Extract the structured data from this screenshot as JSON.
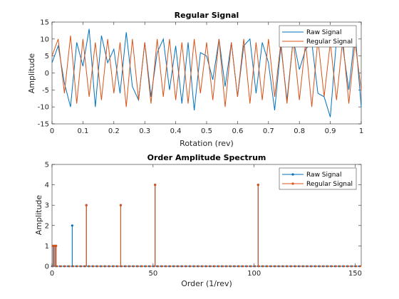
{
  "chart_data": [
    {
      "type": "line",
      "title": "Regular Signal",
      "xlabel": "Rotation (rev)",
      "ylabel": "Amplitude",
      "xlim": [
        0,
        1
      ],
      "ylim": [
        -15,
        15
      ],
      "xticks": [
        "0",
        "0.1",
        "0.2",
        "0.3",
        "0.4",
        "0.5",
        "0.6",
        "0.7",
        "0.8",
        "0.9",
        "1"
      ],
      "yticks": [
        "-15",
        "-10",
        "-5",
        "0",
        "5",
        "10",
        "15"
      ],
      "grid": false,
      "legend_position": "top-right",
      "series": [
        {
          "name": "Raw Signal",
          "color": "#0072BD",
          "x": [
            0,
            0.02,
            0.04,
            0.06,
            0.08,
            0.1,
            0.12,
            0.14,
            0.16,
            0.18,
            0.2,
            0.22,
            0.24,
            0.26,
            0.28,
            0.3,
            0.32,
            0.34,
            0.36,
            0.38,
            0.4,
            0.42,
            0.44,
            0.46,
            0.48,
            0.5,
            0.52,
            0.54,
            0.56,
            0.58,
            0.6,
            0.62,
            0.64,
            0.66,
            0.68,
            0.7,
            0.72,
            0.74,
            0.76,
            0.78,
            0.8,
            0.82,
            0.84,
            0.86,
            0.88,
            0.9,
            0.92,
            0.94,
            0.96,
            0.98,
            1
          ],
          "y": [
            3,
            8,
            -3,
            -10,
            9,
            2,
            13,
            -10,
            11,
            3,
            7,
            -6,
            12,
            -4,
            -8,
            9,
            -7,
            6,
            10,
            -5,
            8,
            -9,
            9,
            -11,
            6,
            5,
            -2,
            10,
            -4,
            9,
            -7,
            8,
            10,
            -6,
            9,
            3,
            -11,
            8,
            -8,
            10,
            1,
            7,
            9,
            -6,
            -7,
            -13,
            10,
            8,
            -5,
            12,
            -10
          ]
        },
        {
          "name": "Regular Signal",
          "color": "#D95319",
          "x": [
            0,
            0.02,
            0.04,
            0.06,
            0.08,
            0.1,
            0.12,
            0.14,
            0.16,
            0.18,
            0.2,
            0.22,
            0.24,
            0.26,
            0.28,
            0.3,
            0.32,
            0.34,
            0.36,
            0.38,
            0.4,
            0.42,
            0.44,
            0.46,
            0.48,
            0.5,
            0.52,
            0.54,
            0.56,
            0.58,
            0.6,
            0.62,
            0.64,
            0.66,
            0.68,
            0.7,
            0.72,
            0.74,
            0.76,
            0.78,
            0.8,
            0.82,
            0.84,
            0.86,
            0.88,
            0.9,
            0.92,
            0.94,
            0.96,
            0.98,
            1
          ],
          "y": [
            5,
            10,
            -6,
            11,
            -9,
            10,
            -7,
            9,
            -8,
            10,
            -6,
            9,
            -10,
            10,
            -8,
            9,
            -9,
            10,
            -7,
            10,
            -8,
            9,
            -9,
            10,
            -6,
            9,
            -8,
            10,
            -10,
            9,
            -7,
            10,
            -9,
            9,
            -8,
            10,
            -7,
            9,
            -9,
            10,
            -8,
            9,
            -10,
            10,
            -7,
            9,
            -8,
            10,
            -9,
            9,
            -5
          ]
        }
      ]
    },
    {
      "type": "stem",
      "title": "Order Amplitude Spectrum",
      "xlabel": "Order (1/rev)",
      "ylabel": "Amplitude",
      "xlim": [
        0,
        153
      ],
      "ylim": [
        0,
        5
      ],
      "xticks": [
        "0",
        "50",
        "100",
        "150"
      ],
      "yticks": [
        "0",
        "1",
        "2",
        "3",
        "4",
        "5"
      ],
      "grid": false,
      "legend_position": "top-right",
      "baseline_marker_step": 2,
      "series": [
        {
          "name": "Raw Signal",
          "color": "#0072BD",
          "peaks": [
            {
              "x": 1,
              "y": 1
            },
            {
              "x": 2,
              "y": 1
            },
            {
              "x": 10,
              "y": 2
            },
            {
              "x": 17,
              "y": 3
            },
            {
              "x": 34,
              "y": 3
            },
            {
              "x": 51,
              "y": 4
            },
            {
              "x": 102,
              "y": 4
            }
          ]
        },
        {
          "name": "Regular Signal",
          "color": "#D95319",
          "peaks": [
            {
              "x": 0.5,
              "y": 1
            },
            {
              "x": 1.5,
              "y": 1
            },
            {
              "x": 2,
              "y": 1
            },
            {
              "x": 17,
              "y": 3
            },
            {
              "x": 34,
              "y": 3
            },
            {
              "x": 51,
              "y": 4
            },
            {
              "x": 102,
              "y": 4
            }
          ]
        }
      ]
    }
  ]
}
